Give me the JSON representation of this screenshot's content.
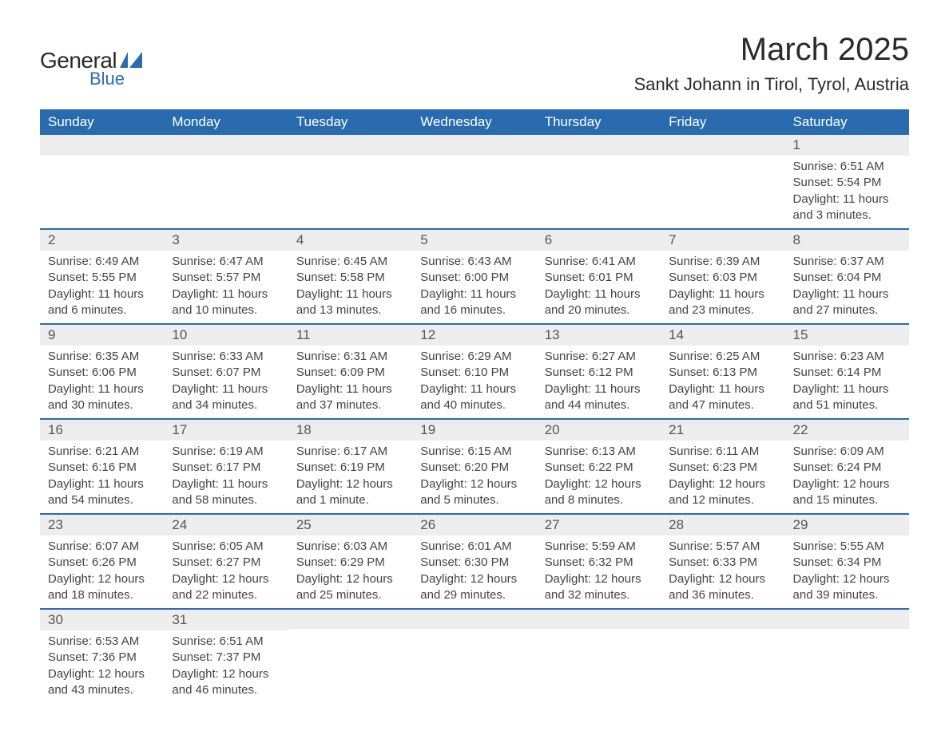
{
  "logo": {
    "general": "General",
    "blue": "Blue",
    "shape_color": "#2a6bb0"
  },
  "title": "March 2025",
  "location": "Sankt Johann in Tirol, Tyrol, Austria",
  "colors": {
    "header_bg": "#2a6bb0",
    "header_text": "#ffffff",
    "daynum_bg": "#ededed",
    "daynum_text": "#555555",
    "body_text": "#444444",
    "border": "#2a6bb0"
  },
  "day_headers": [
    "Sunday",
    "Monday",
    "Tuesday",
    "Wednesday",
    "Thursday",
    "Friday",
    "Saturday"
  ],
  "weeks": [
    [
      {
        "n": "",
        "sr": "",
        "ss": "",
        "dl": ""
      },
      {
        "n": "",
        "sr": "",
        "ss": "",
        "dl": ""
      },
      {
        "n": "",
        "sr": "",
        "ss": "",
        "dl": ""
      },
      {
        "n": "",
        "sr": "",
        "ss": "",
        "dl": ""
      },
      {
        "n": "",
        "sr": "",
        "ss": "",
        "dl": ""
      },
      {
        "n": "",
        "sr": "",
        "ss": "",
        "dl": ""
      },
      {
        "n": "1",
        "sr": "Sunrise: 6:51 AM",
        "ss": "Sunset: 5:54 PM",
        "dl": "Daylight: 11 hours and 3 minutes."
      }
    ],
    [
      {
        "n": "2",
        "sr": "Sunrise: 6:49 AM",
        "ss": "Sunset: 5:55 PM",
        "dl": "Daylight: 11 hours and 6 minutes."
      },
      {
        "n": "3",
        "sr": "Sunrise: 6:47 AM",
        "ss": "Sunset: 5:57 PM",
        "dl": "Daylight: 11 hours and 10 minutes."
      },
      {
        "n": "4",
        "sr": "Sunrise: 6:45 AM",
        "ss": "Sunset: 5:58 PM",
        "dl": "Daylight: 11 hours and 13 minutes."
      },
      {
        "n": "5",
        "sr": "Sunrise: 6:43 AM",
        "ss": "Sunset: 6:00 PM",
        "dl": "Daylight: 11 hours and 16 minutes."
      },
      {
        "n": "6",
        "sr": "Sunrise: 6:41 AM",
        "ss": "Sunset: 6:01 PM",
        "dl": "Daylight: 11 hours and 20 minutes."
      },
      {
        "n": "7",
        "sr": "Sunrise: 6:39 AM",
        "ss": "Sunset: 6:03 PM",
        "dl": "Daylight: 11 hours and 23 minutes."
      },
      {
        "n": "8",
        "sr": "Sunrise: 6:37 AM",
        "ss": "Sunset: 6:04 PM",
        "dl": "Daylight: 11 hours and 27 minutes."
      }
    ],
    [
      {
        "n": "9",
        "sr": "Sunrise: 6:35 AM",
        "ss": "Sunset: 6:06 PM",
        "dl": "Daylight: 11 hours and 30 minutes."
      },
      {
        "n": "10",
        "sr": "Sunrise: 6:33 AM",
        "ss": "Sunset: 6:07 PM",
        "dl": "Daylight: 11 hours and 34 minutes."
      },
      {
        "n": "11",
        "sr": "Sunrise: 6:31 AM",
        "ss": "Sunset: 6:09 PM",
        "dl": "Daylight: 11 hours and 37 minutes."
      },
      {
        "n": "12",
        "sr": "Sunrise: 6:29 AM",
        "ss": "Sunset: 6:10 PM",
        "dl": "Daylight: 11 hours and 40 minutes."
      },
      {
        "n": "13",
        "sr": "Sunrise: 6:27 AM",
        "ss": "Sunset: 6:12 PM",
        "dl": "Daylight: 11 hours and 44 minutes."
      },
      {
        "n": "14",
        "sr": "Sunrise: 6:25 AM",
        "ss": "Sunset: 6:13 PM",
        "dl": "Daylight: 11 hours and 47 minutes."
      },
      {
        "n": "15",
        "sr": "Sunrise: 6:23 AM",
        "ss": "Sunset: 6:14 PM",
        "dl": "Daylight: 11 hours and 51 minutes."
      }
    ],
    [
      {
        "n": "16",
        "sr": "Sunrise: 6:21 AM",
        "ss": "Sunset: 6:16 PM",
        "dl": "Daylight: 11 hours and 54 minutes."
      },
      {
        "n": "17",
        "sr": "Sunrise: 6:19 AM",
        "ss": "Sunset: 6:17 PM",
        "dl": "Daylight: 11 hours and 58 minutes."
      },
      {
        "n": "18",
        "sr": "Sunrise: 6:17 AM",
        "ss": "Sunset: 6:19 PM",
        "dl": "Daylight: 12 hours and 1 minute."
      },
      {
        "n": "19",
        "sr": "Sunrise: 6:15 AM",
        "ss": "Sunset: 6:20 PM",
        "dl": "Daylight: 12 hours and 5 minutes."
      },
      {
        "n": "20",
        "sr": "Sunrise: 6:13 AM",
        "ss": "Sunset: 6:22 PM",
        "dl": "Daylight: 12 hours and 8 minutes."
      },
      {
        "n": "21",
        "sr": "Sunrise: 6:11 AM",
        "ss": "Sunset: 6:23 PM",
        "dl": "Daylight: 12 hours and 12 minutes."
      },
      {
        "n": "22",
        "sr": "Sunrise: 6:09 AM",
        "ss": "Sunset: 6:24 PM",
        "dl": "Daylight: 12 hours and 15 minutes."
      }
    ],
    [
      {
        "n": "23",
        "sr": "Sunrise: 6:07 AM",
        "ss": "Sunset: 6:26 PM",
        "dl": "Daylight: 12 hours and 18 minutes."
      },
      {
        "n": "24",
        "sr": "Sunrise: 6:05 AM",
        "ss": "Sunset: 6:27 PM",
        "dl": "Daylight: 12 hours and 22 minutes."
      },
      {
        "n": "25",
        "sr": "Sunrise: 6:03 AM",
        "ss": "Sunset: 6:29 PM",
        "dl": "Daylight: 12 hours and 25 minutes."
      },
      {
        "n": "26",
        "sr": "Sunrise: 6:01 AM",
        "ss": "Sunset: 6:30 PM",
        "dl": "Daylight: 12 hours and 29 minutes."
      },
      {
        "n": "27",
        "sr": "Sunrise: 5:59 AM",
        "ss": "Sunset: 6:32 PM",
        "dl": "Daylight: 12 hours and 32 minutes."
      },
      {
        "n": "28",
        "sr": "Sunrise: 5:57 AM",
        "ss": "Sunset: 6:33 PM",
        "dl": "Daylight: 12 hours and 36 minutes."
      },
      {
        "n": "29",
        "sr": "Sunrise: 5:55 AM",
        "ss": "Sunset: 6:34 PM",
        "dl": "Daylight: 12 hours and 39 minutes."
      }
    ],
    [
      {
        "n": "30",
        "sr": "Sunrise: 6:53 AM",
        "ss": "Sunset: 7:36 PM",
        "dl": "Daylight: 12 hours and 43 minutes."
      },
      {
        "n": "31",
        "sr": "Sunrise: 6:51 AM",
        "ss": "Sunset: 7:37 PM",
        "dl": "Daylight: 12 hours and 46 minutes."
      },
      {
        "n": "",
        "sr": "",
        "ss": "",
        "dl": ""
      },
      {
        "n": "",
        "sr": "",
        "ss": "",
        "dl": ""
      },
      {
        "n": "",
        "sr": "",
        "ss": "",
        "dl": ""
      },
      {
        "n": "",
        "sr": "",
        "ss": "",
        "dl": ""
      },
      {
        "n": "",
        "sr": "",
        "ss": "",
        "dl": ""
      }
    ]
  ]
}
